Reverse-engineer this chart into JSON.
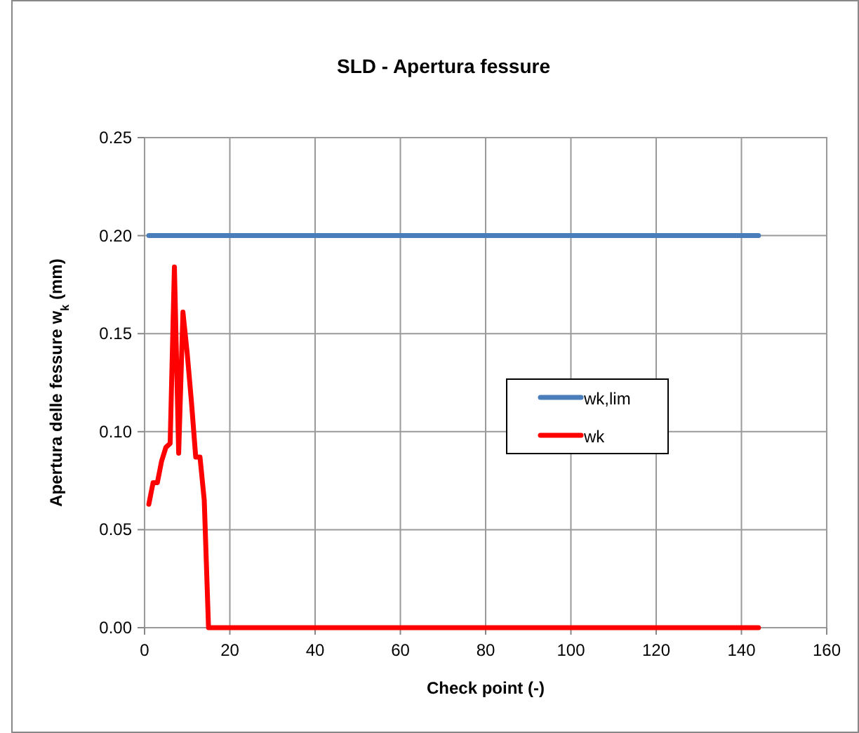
{
  "chart_data": {
    "type": "line",
    "title": "SLD - Apertura fessure",
    "xlabel": "Check point (-)",
    "ylabel": "Apertura delle fessure w$_{k}$ (mm)",
    "xlim": [
      0,
      160
    ],
    "xticks": [
      0,
      20,
      40,
      60,
      80,
      100,
      120,
      140,
      160
    ],
    "ylim": [
      0,
      0.25
    ],
    "yticks": [
      {
        "value": 0,
        "label": "0.00"
      },
      {
        "value": 0.05,
        "label": "0.05"
      },
      {
        "value": 0.1,
        "label": "0.10"
      },
      {
        "value": 0.15,
        "label": "0.15"
      },
      {
        "value": 0.2,
        "label": "0.20"
      },
      {
        "value": 0.25,
        "label": "0.25"
      }
    ],
    "grid": true,
    "legend": "right",
    "marker": "none",
    "line_style": "solid",
    "series": [
      {
        "name": "wk,lim",
        "color": "#4a7ebb",
        "x": [
          1,
          144
        ],
        "values": [
          0.2,
          0.2
        ]
      },
      {
        "name": "wk",
        "color": "#ff0000",
        "x": [
          1,
          2,
          3,
          4,
          5,
          6,
          7,
          8,
          9,
          10,
          11,
          12,
          13,
          14,
          15,
          144
        ],
        "values": [
          0.063,
          0.074,
          0.074,
          0.085,
          0.092,
          0.094,
          0.184,
          0.089,
          0.161,
          0.14,
          0.115,
          0.087,
          0.087,
          0.065,
          0,
          0
        ]
      }
    ]
  }
}
